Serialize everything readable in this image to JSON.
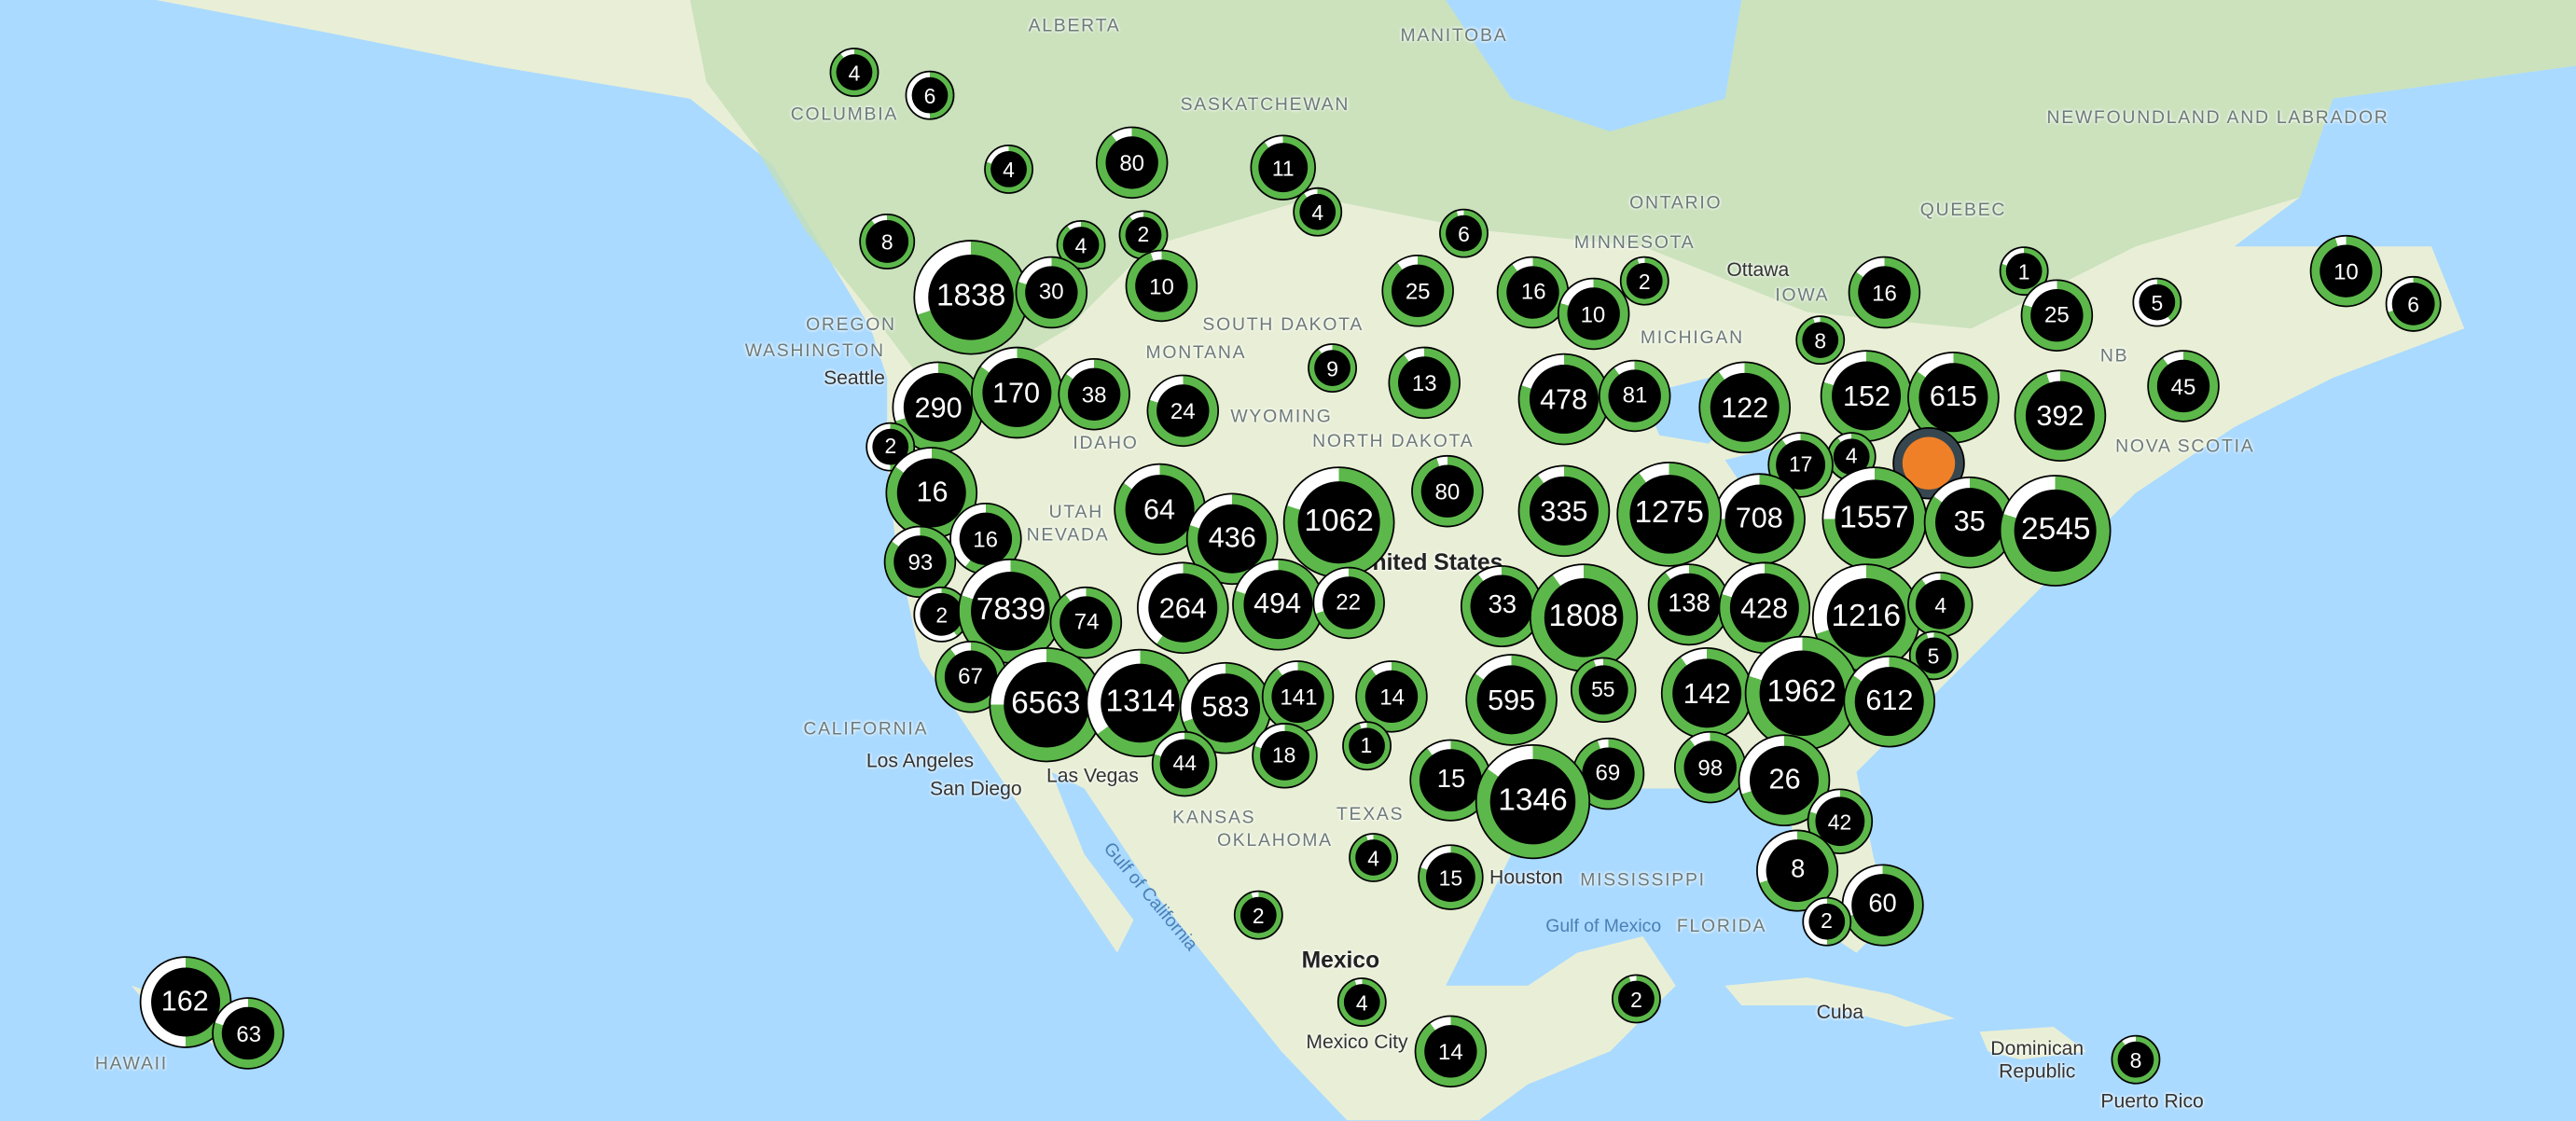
{
  "colors": {
    "ocean": "#aadaff",
    "land": "#e9efd6",
    "forest": "#c3dfb6",
    "ring_green": "#5cb84a",
    "ring_white": "#ffffff",
    "cluster_fill": "#000000",
    "highlight": "#f08027"
  },
  "labels": {
    "alberta": "ALBERTA",
    "manitoba": "MANITOBA",
    "saskatchewan": "SASKATCHEWAN",
    "ontario": "ONTARIO",
    "quebec": "QUEBEC",
    "newfoundland": "NEWFOUNDLAND AND LABRADOR",
    "columbia": "COLUMBIA",
    "washington": "WASHINGTON",
    "montana": "MONTANA",
    "idaho": "IDAHO",
    "wyoming": "WYOMING",
    "north_dakota": "NORTH DAKOTA",
    "south_dakota": "SOUTH DAKOTA",
    "nevada": "NEVADA",
    "utah": "UTAH",
    "california": "CALIFORNIA",
    "kansas": "KANSAS",
    "oklahoma": "OKLAHOMA",
    "texas": "TEXAS",
    "mississippi": "MISSISSIPPI",
    "florida": "FLORIDA",
    "nb": "NB",
    "nova_scotia": "NOVA SCOTIA",
    "michigan": "MICHIGAN",
    "minnesota": "MINNESOTA",
    "hawaii": "HAWAII",
    "oregon": "OREGON",
    "iowa": "IOWA",
    "seattle": "Seattle",
    "los_angeles": "Los Angeles",
    "san_diego": "San Diego",
    "las_vegas": "Las Vegas",
    "houston": "Houston",
    "ottawa": "Ottawa",
    "mexico_city": "Mexico City",
    "puerto_rico": "Puerto Rico",
    "united_states": "United States",
    "mexico": "Mexico",
    "cuba": "Cuba",
    "dominican_republic": "Dominican Republic",
    "gulf_of_california": "Gulf of California",
    "gulf_of_mexico": "Gulf of Mexico"
  },
  "clusters": [
    {
      "count": "4",
      "white": 0.1
    },
    {
      "count": "6",
      "white": 0.5
    },
    {
      "count": "4",
      "white": 0.2
    },
    {
      "count": "80",
      "white": 0.1
    },
    {
      "count": "11",
      "white": 0.1
    },
    {
      "count": "4",
      "white": 0.1
    },
    {
      "count": "6",
      "white": 0.05
    },
    {
      "count": "2",
      "white": 0.1
    },
    {
      "count": "10",
      "white": 0.05
    },
    {
      "count": "4",
      "white": 0.1
    },
    {
      "count": "8",
      "white": 0.1
    },
    {
      "count": "1838",
      "white": 0.3
    },
    {
      "count": "30",
      "white": 0.2
    },
    {
      "count": "25",
      "white": 0.1
    },
    {
      "count": "16",
      "white": 0.1
    },
    {
      "count": "10",
      "white": 0.2
    },
    {
      "count": "2",
      "white": 0.05
    },
    {
      "count": "9",
      "white": 0.1
    },
    {
      "count": "13",
      "white": 0.1
    },
    {
      "count": "478",
      "white": 0.2
    },
    {
      "count": "81",
      "white": 0.1
    },
    {
      "count": "122",
      "white": 0.1
    },
    {
      "count": "16",
      "white": 0.15
    },
    {
      "count": "8",
      "white": 0.05
    },
    {
      "count": "1",
      "white": 0.2
    },
    {
      "count": "25",
      "white": 0.2
    },
    {
      "count": "5",
      "white": 0.6
    },
    {
      "count": "10",
      "white": 0.05
    },
    {
      "count": "6",
      "white": 0.3
    },
    {
      "count": "45",
      "white": 0.1
    },
    {
      "count": "152",
      "white": 0.2
    },
    {
      "count": "615",
      "white": 0.15
    },
    {
      "count": "392",
      "white": 0.05
    },
    {
      "count": "4",
      "white": 0.1
    },
    {
      "count": "17",
      "white": 0.1
    },
    {
      "count": "",
      "white": 0.0,
      "highlight": true
    },
    {
      "count": "708",
      "white": 0.25
    },
    {
      "count": "1557",
      "white": 0.25
    },
    {
      "count": "1275",
      "white": 0.1
    },
    {
      "count": "335",
      "white": 0.1
    },
    {
      "count": "80",
      "white": 0.05
    },
    {
      "count": "35",
      "white": 0.15
    },
    {
      "count": "2545",
      "white": 0.2
    },
    {
      "count": "290",
      "white": 0.3
    },
    {
      "count": "170",
      "white": 0.15
    },
    {
      "count": "38",
      "white": 0.15
    },
    {
      "count": "24",
      "white": 0.2
    },
    {
      "count": "2",
      "white": 0.5
    },
    {
      "count": "16",
      "white": 0.15
    },
    {
      "count": "16",
      "white": 0.4
    },
    {
      "count": "93",
      "white": 0.15
    },
    {
      "count": "2",
      "white": 0.6
    },
    {
      "count": "7839",
      "white": 0.2
    },
    {
      "count": "74",
      "white": 0.1
    },
    {
      "count": "67",
      "white": 0.1
    },
    {
      "count": "6563",
      "white": 0.25
    },
    {
      "count": "1314",
      "white": 0.35
    },
    {
      "count": "583",
      "white": 0.3
    },
    {
      "count": "44",
      "white": 0.2
    },
    {
      "count": "64",
      "white": 0.15
    },
    {
      "count": "436",
      "white": 0.2
    },
    {
      "count": "1062",
      "white": 0.2
    },
    {
      "count": "264",
      "white": 0.4
    },
    {
      "count": "494",
      "white": 0.2
    },
    {
      "count": "22",
      "white": 0.3
    },
    {
      "count": "141",
      "white": 0.1
    },
    {
      "count": "18",
      "white": 0.2
    },
    {
      "count": "14",
      "white": 0.1
    },
    {
      "count": "1",
      "white": 0.05
    },
    {
      "count": "33",
      "white": 0.1
    },
    {
      "count": "1808",
      "white": 0.1
    },
    {
      "count": "55",
      "white": 0.05
    },
    {
      "count": "138",
      "white": 0.1
    },
    {
      "count": "428",
      "white": 0.2
    },
    {
      "count": "1216",
      "white": 0.3
    },
    {
      "count": "4",
      "white": 0.1
    },
    {
      "count": "5",
      "white": 0.05
    },
    {
      "count": "595",
      "white": 0.15
    },
    {
      "count": "142",
      "white": 0.1
    },
    {
      "count": "1962",
      "white": 0.2
    },
    {
      "count": "612",
      "white": 0.15
    },
    {
      "count": "69",
      "white": 0.05
    },
    {
      "count": "98",
      "white": 0.1
    },
    {
      "count": "15",
      "white": 0.1
    },
    {
      "count": "1346",
      "white": 0.15
    },
    {
      "count": "26",
      "white": 0.3
    },
    {
      "count": "42",
      "white": 0.2
    },
    {
      "count": "8",
      "white": 0.3
    },
    {
      "count": "60",
      "white": 0.3
    },
    {
      "count": "2",
      "white": 0.5
    },
    {
      "count": "4",
      "white": 0.05
    },
    {
      "count": "15",
      "white": 0.2
    },
    {
      "count": "2",
      "white": 0.05
    },
    {
      "count": "4",
      "white": 0.05
    },
    {
      "count": "14",
      "white": 0.1
    },
    {
      "count": "2",
      "white": 0.05
    },
    {
      "count": "8",
      "white": 0.1
    },
    {
      "count": "162",
      "white": 0.5
    },
    {
      "count": "63",
      "white": 0.2
    }
  ]
}
